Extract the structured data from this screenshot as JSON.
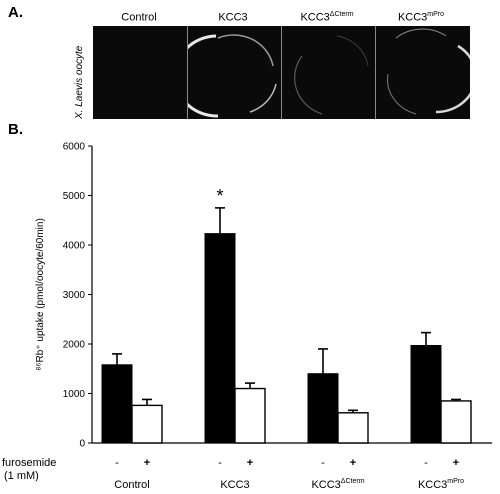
{
  "panel_a": {
    "label": "A.",
    "headers": [
      {
        "base": "Control",
        "sup": ""
      },
      {
        "base": "KCC3",
        "sup": ""
      },
      {
        "base": "KCC3",
        "sup": "ΔCterm"
      },
      {
        "base": "KCC3",
        "sup": "mPro"
      }
    ],
    "side_label": "X. Laevis oocyte"
  },
  "chart_data": {
    "panel_label": "B.",
    "type": "bar",
    "ylabel": "⁸⁶Rb⁺ uptake (pmol/oocyte/60min)",
    "ylim": [
      0,
      6000
    ],
    "yticks": [
      0,
      1000,
      2000,
      3000,
      4000,
      5000,
      6000
    ],
    "groups": [
      {
        "name": "Control",
        "sup": "",
        "minus": 1580,
        "plus": 760,
        "minus_err": 220,
        "plus_err": 120
      },
      {
        "name": "KCC3",
        "sup": "",
        "minus": 4230,
        "plus": 1100,
        "minus_err": 520,
        "plus_err": 110,
        "star": "*"
      },
      {
        "name": "KCC3",
        "sup": "ΔCterm",
        "minus": 1400,
        "plus": 610,
        "minus_err": 500,
        "plus_err": 50
      },
      {
        "name": "KCC3",
        "sup": "mPro",
        "minus": 1970,
        "plus": 850,
        "minus_err": 260,
        "plus_err": 30
      }
    ],
    "condition_labels": {
      "minus": "-",
      "plus": "+"
    },
    "treatment_label_line1": "furosemide",
    "treatment_label_line2": "(1 mM)",
    "series": [
      {
        "name": "-",
        "color": "#000000"
      },
      {
        "name": "+",
        "color": "#ffffff"
      }
    ]
  }
}
